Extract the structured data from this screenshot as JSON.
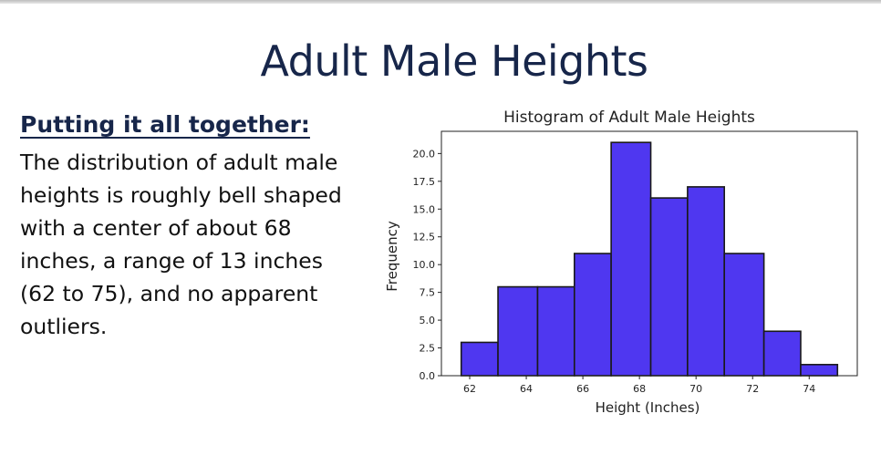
{
  "slide": {
    "title": "Adult Male Heights",
    "heading": "Putting it all together:",
    "body": "The distribution of adult male heights is roughly bell shaped with a center of about 68 inches, a range of 13 inches (62 to 75), and no apparent outliers."
  },
  "chart_data": {
    "type": "bar",
    "title": "Histogram of Adult Male Heights",
    "xlabel": "Height (Inches)",
    "ylabel": "Frequency",
    "bin_edges": [
      61.7,
      63.0,
      64.4,
      65.7,
      67.0,
      68.4,
      69.7,
      71.0,
      72.4,
      73.7,
      75.0
    ],
    "values": [
      3,
      8,
      8,
      11,
      21,
      16,
      17,
      11,
      4,
      1
    ],
    "xlim": [
      61.0,
      75.7
    ],
    "ylim": [
      0,
      22
    ],
    "xticks": [
      62,
      64,
      66,
      68,
      70,
      72,
      74
    ],
    "yticks": [
      0.0,
      2.5,
      5.0,
      7.5,
      10.0,
      12.5,
      15.0,
      17.5,
      20.0
    ],
    "bar_color": "#4f37f0",
    "edge_color": "#1a1a1a",
    "grid": false
  }
}
